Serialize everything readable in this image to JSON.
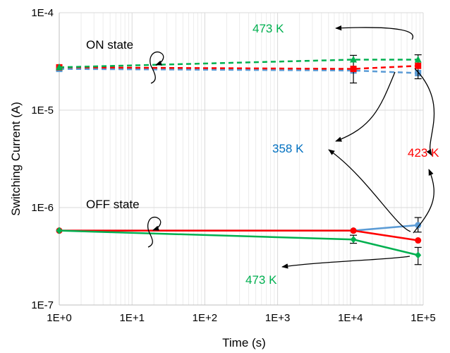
{
  "chart_data": {
    "type": "line",
    "title": "",
    "xlabel": "Time (s)",
    "ylabel": "Switching Current (A)",
    "x_scale": "log",
    "y_scale": "log",
    "xlim": [
      1,
      100000
    ],
    "ylim": [
      1e-07,
      0.0001
    ],
    "grid": true,
    "x_ticks": [
      {
        "value": 1,
        "label": "1E+0"
      },
      {
        "value": 10,
        "label": "1E+1"
      },
      {
        "value": 100,
        "label": "1E+2"
      },
      {
        "value": 1000,
        "label": "1E+3"
      },
      {
        "value": 10000,
        "label": "1E+4"
      },
      {
        "value": 100000,
        "label": "1E+5"
      }
    ],
    "y_ticks": [
      {
        "value": 0.0001,
        "label": "1E-4"
      },
      {
        "value": 1e-05,
        "label": "1E-5"
      },
      {
        "value": 1e-06,
        "label": "1E-6"
      },
      {
        "value": 1e-07,
        "label": "1E-7"
      }
    ],
    "series": [
      {
        "group": "ON",
        "temperature": "358 K",
        "color": "#5b9bd5",
        "dash": true,
        "marker": "square",
        "x": [
          1,
          11000,
          85000
        ],
        "y": [
          2.65e-05,
          2.55e-05,
          2.4e-05
        ],
        "err": [
          null,
          null,
          null
        ]
      },
      {
        "group": "ON",
        "temperature": "423 K",
        "color": "#ff0000",
        "dash": true,
        "marker": "square",
        "x": [
          1,
          11000,
          85000
        ],
        "y": [
          2.75e-05,
          2.65e-05,
          2.85e-05
        ],
        "err": [
          null,
          [
            1.9e-05,
            3.65e-05
          ],
          [
            2.1e-05,
            3.7e-05
          ]
        ]
      },
      {
        "group": "ON",
        "temperature": "473 K",
        "color": "#00b050",
        "dash": true,
        "marker": "triangle",
        "x": [
          1,
          11000,
          85000
        ],
        "y": [
          2.75e-05,
          3.3e-05,
          3.3e-05
        ],
        "err": [
          null,
          null,
          null
        ]
      },
      {
        "group": "OFF",
        "temperature": "358 K",
        "color": "#5b9bd5",
        "dash": false,
        "marker": "circle",
        "x": [
          1,
          11000,
          85000
        ],
        "y": [
          5.8e-07,
          5.8e-07,
          6.6e-07
        ],
        "err": [
          null,
          null,
          [
            5.6e-07,
            7.9e-07
          ]
        ]
      },
      {
        "group": "OFF",
        "temperature": "423 K",
        "color": "#ff0000",
        "dash": false,
        "marker": "circle",
        "x": [
          1,
          11000,
          85000
        ],
        "y": [
          5.8e-07,
          5.8e-07,
          4.6e-07
        ],
        "err": [
          null,
          null,
          null
        ]
      },
      {
        "group": "OFF",
        "temperature": "473 K",
        "color": "#00b050",
        "dash": false,
        "marker": "diamond",
        "x": [
          1,
          11000,
          85000
        ],
        "y": [
          5.8e-07,
          4.7e-07,
          3.25e-07
        ],
        "err": [
          null,
          [
            4.3e-07,
            5.2e-07
          ],
          [
            2.6e-07,
            3.9e-07
          ]
        ]
      }
    ],
    "annotations": [
      {
        "id": "on-state",
        "text": "ON state",
        "color": "#000000"
      },
      {
        "id": "off-state",
        "text": "OFF state",
        "color": "#000000"
      },
      {
        "id": "on-473",
        "text": "473 K",
        "color": "#00b050"
      },
      {
        "id": "358",
        "text": "358 K",
        "color": "#0070c0"
      },
      {
        "id": "423",
        "text": "423 K",
        "color": "#ff0000"
      },
      {
        "id": "off-473",
        "text": "473 K",
        "color": "#00b050"
      }
    ]
  }
}
